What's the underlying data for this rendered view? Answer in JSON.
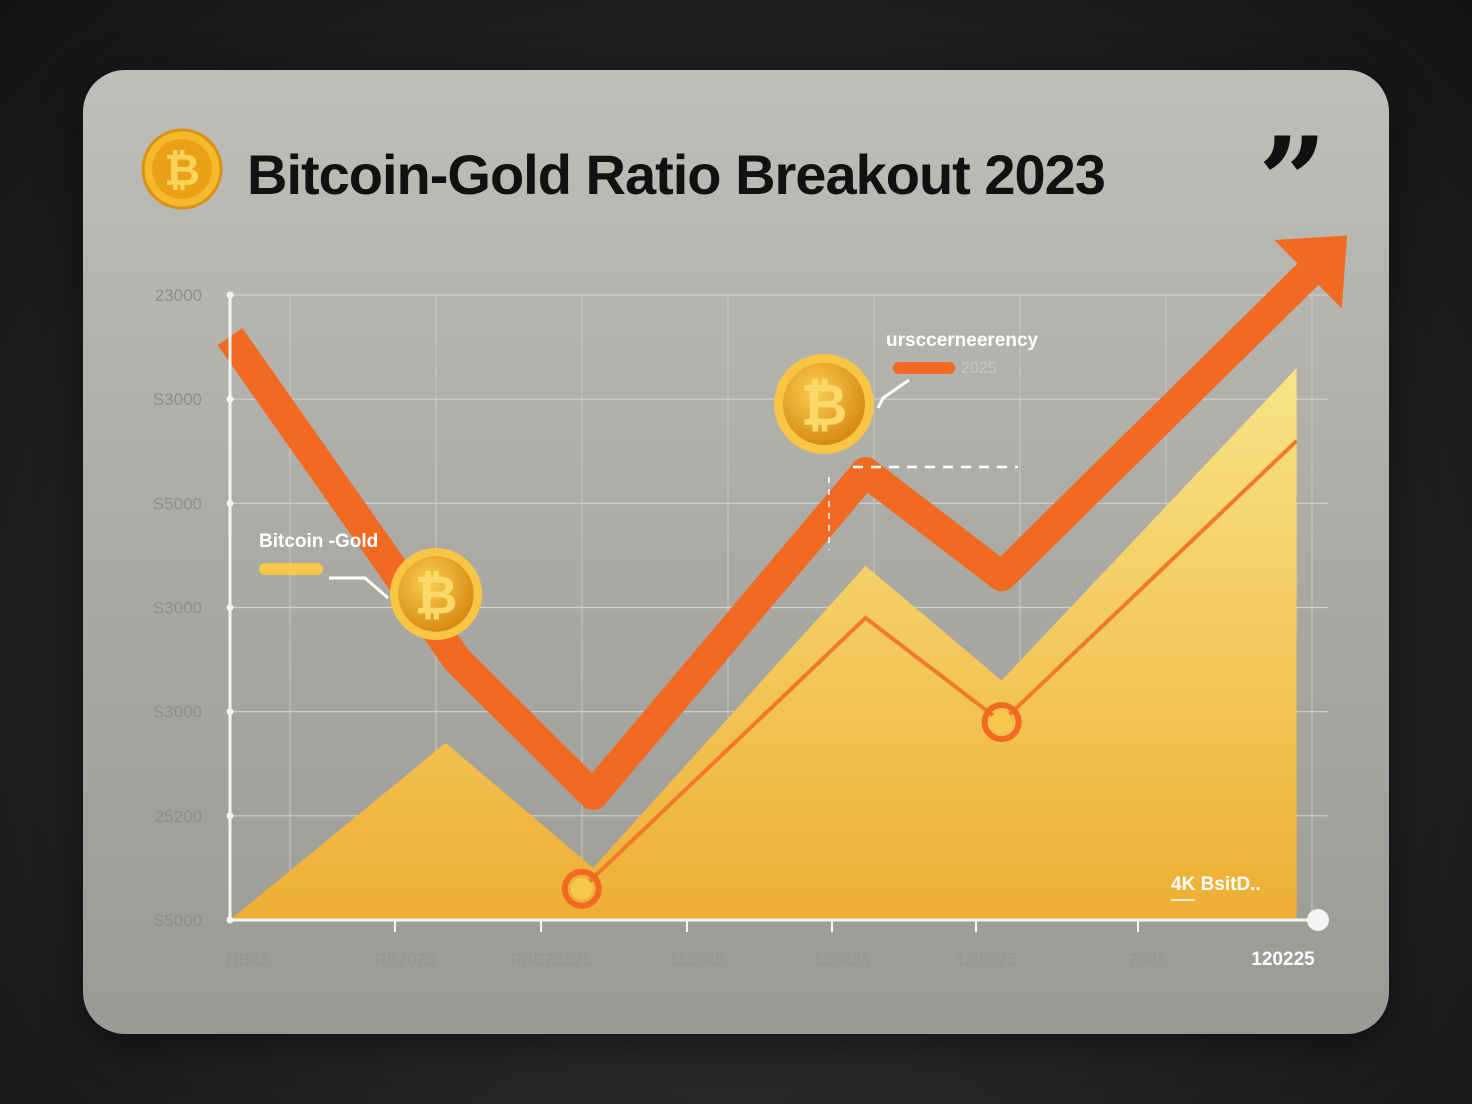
{
  "title": "Bitcoin-Gold Ratio Breakout 2023",
  "title_quote": "”",
  "colors": {
    "orange": "#f26a22",
    "gold_top": "#f7df7a",
    "gold_bottom": "#efb338",
    "line_thin": "#f07a28",
    "coin_face": "#e7a317",
    "coin_rim": "#fbc94a"
  },
  "icons": [
    "bitcoin-coin-icon",
    "arrow-head-icon",
    "closing-quote-icon"
  ],
  "chart_data": {
    "type": "area",
    "y_ticks": [
      "23000",
      "S3000",
      "S5000",
      "S3000",
      "S3000",
      "25200",
      "S5000"
    ],
    "x_ticks": [
      "RB25",
      "RB2025",
      "RBB22225",
      "112025",
      "120225",
      "1.20225",
      "2025",
      "120225"
    ],
    "series": [
      {
        "name": "Bitcoin -Gold",
        "style": "thick-orange-trend-arrow",
        "points": [
          [
            0,
            56
          ],
          [
            2,
            25
          ],
          [
            3.2,
            12
          ],
          [
            5.6,
            43
          ],
          [
            6.8,
            33
          ],
          [
            9.5,
            62
          ]
        ]
      },
      {
        "style": "yellow-area",
        "points": [
          [
            0,
            0
          ],
          [
            1.9,
            17
          ],
          [
            3.2,
            5
          ],
          [
            5.6,
            34
          ],
          [
            6.8,
            23
          ],
          [
            9.4,
            53
          ]
        ]
      },
      {
        "style": "thin-orange-line",
        "points": [
          [
            3.1,
            3
          ],
          [
            5.6,
            29
          ],
          [
            6.8,
            19
          ],
          [
            9.4,
            46
          ]
        ]
      }
    ],
    "highlight_points": [
      [
        3.1,
        3
      ],
      [
        6.8,
        19
      ]
    ],
    "annotations": {
      "legend_1_label": "Bitcoin -Gold",
      "legend_2_label": "ursccerneerency",
      "legend_2_sub": "2025",
      "corner_label": "4K BsitD.."
    }
  }
}
